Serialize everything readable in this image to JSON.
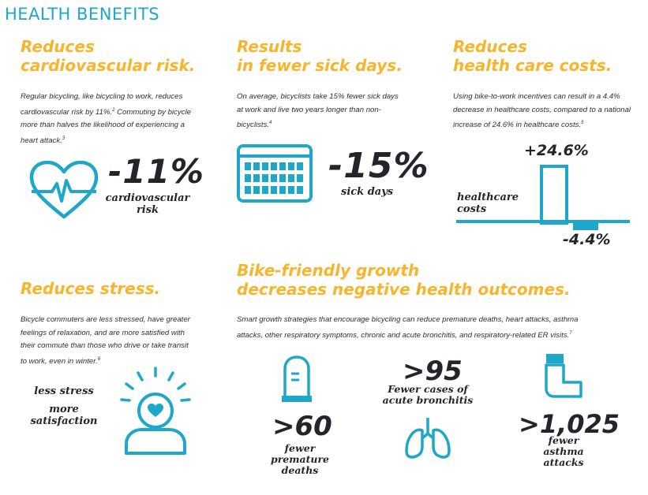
{
  "page_title": "HEALTH BENEFITS",
  "colors": {
    "heading": "#f7b52c",
    "icon": "#1ea7c9",
    "text": "#2b2f38"
  },
  "cardio": {
    "heading_line1": "Reduces",
    "heading_line2": "cardiovascular risk.",
    "body_line1": "Regular bicycling, like bicycling to work, reduces",
    "body_line2": "cardiovascular risk by 11%.",
    "body_sup1": "2",
    "body_line2b": " Commuting by bicycle",
    "body_line3": "more than halves the likelihood of experiencing a",
    "body_line4": "heart attack.",
    "body_sup2": "3",
    "stat": "-11%",
    "stat_label_line1": "cardiovascular",
    "stat_label_line2": "risk",
    "icon": "heart-pulse-icon"
  },
  "sick": {
    "heading_line1": "Results",
    "heading_line2": "in fewer sick days.",
    "body_line1": "On average, bicyclists take 15% fewer sick days",
    "body_line2": "at work and live two years longer than non-",
    "body_line3": "bicyclists.",
    "body_sup": "4",
    "stat": "-15%",
    "stat_label": "sick days",
    "icon": "calendar-icon"
  },
  "costs": {
    "heading_line1": "Reduces",
    "heading_line2": "health care costs.",
    "body_line1": "Using bike-to-work incentives can result in a 4.4%",
    "body_line2": "decrease in healthcare costs, compared to a national",
    "body_line3": "increase of 24.6% in healthcare costs.",
    "body_sup": "5",
    "bar_label_line1": "healthcare",
    "bar_label_line2": "costs",
    "increase_label": "+24.6%",
    "decrease_label": "-4.4%",
    "increase_value": 24.6,
    "decrease_value": -4.4
  },
  "stress": {
    "heading": "Reduces stress.",
    "body_line1": "Bicycle commuters are less stressed, have greater",
    "body_line2": "feelings of relaxation, and are more satisfied with",
    "body_line3": "their commute than those who drive or take transit",
    "body_line4": "to work, even in winter.",
    "body_sup": "6",
    "label1": "less stress",
    "label2_line1": "more",
    "label2_line2": "satisfaction",
    "icon": "relaxed-person-icon"
  },
  "growth": {
    "heading_line1": "Bike-friendly growth",
    "heading_line2": "decreases negative health outcomes.",
    "body_line1": "Smart growth strategies that encourage bicycling can reduce premature deaths, heart attacks, asthma",
    "body_line2": "attacks, other respiratory symptoms, chronic and acute bronchitis, and respiratory-related ER visits.",
    "body_sup": "7",
    "deaths_stat": ">60",
    "deaths_line1": "fewer",
    "deaths_line2": "premature",
    "deaths_line3": "deaths",
    "bronch_stat": ">95",
    "bronch_line1": "Fewer cases of",
    "bronch_line2": "acute bronchitis",
    "asthma_stat": ">1,025",
    "asthma_line1": "fewer",
    "asthma_line2": "asthma",
    "asthma_line3": "attacks",
    "icons": [
      "tombstone-icon",
      "lungs-icon",
      "inhaler-icon"
    ]
  }
}
